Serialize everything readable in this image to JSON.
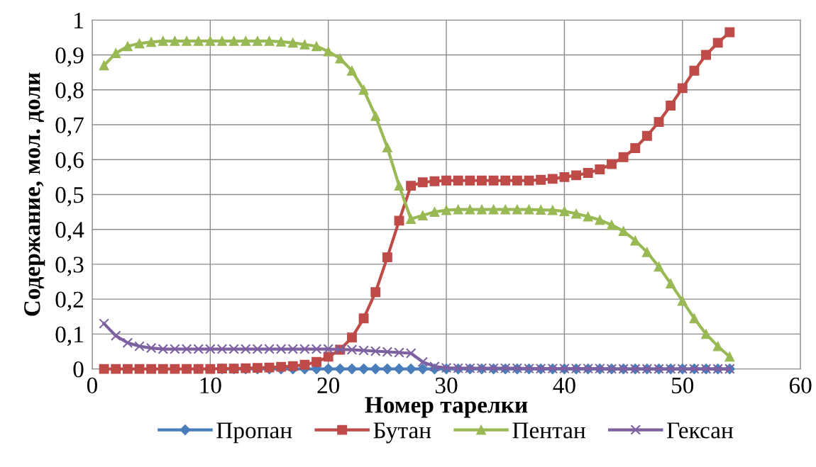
{
  "chart_data": {
    "type": "line",
    "xlabel": "Номер тарелки",
    "ylabel": "Содержание, мол. доли",
    "x": [
      1,
      2,
      3,
      4,
      5,
      6,
      7,
      8,
      9,
      10,
      11,
      12,
      13,
      14,
      15,
      16,
      17,
      18,
      19,
      20,
      21,
      22,
      23,
      24,
      25,
      26,
      27,
      28,
      29,
      30,
      31,
      32,
      33,
      34,
      35,
      36,
      37,
      38,
      39,
      40,
      41,
      42,
      43,
      44,
      45,
      46,
      47,
      48,
      49,
      50,
      51,
      52,
      53,
      54
    ],
    "series": [
      {
        "name": "Пропан",
        "color": "#4a7ebb",
        "marker": "diamond",
        "values": [
          null,
          null,
          null,
          null,
          null,
          null,
          null,
          null,
          null,
          null,
          0,
          0,
          0,
          0,
          0,
          0,
          0,
          0,
          0,
          0,
          0,
          0,
          0,
          0,
          0,
          0,
          0,
          0,
          0,
          0,
          0,
          0,
          0,
          0,
          0,
          0,
          0,
          0,
          0,
          0,
          0,
          0,
          0,
          0,
          0,
          0,
          0,
          0,
          0,
          0,
          0,
          0,
          0,
          0
        ]
      },
      {
        "name": "Бутан",
        "color": "#be4b48",
        "marker": "square",
        "values": [
          0,
          0,
          0,
          0,
          0,
          0,
          0,
          0,
          0,
          0,
          0.001,
          0.001,
          0.002,
          0.003,
          0.004,
          0.006,
          0.008,
          0.012,
          0.02,
          0.035,
          0.055,
          0.09,
          0.145,
          0.22,
          0.32,
          0.425,
          0.525,
          0.535,
          0.538,
          0.54,
          0.54,
          0.54,
          0.54,
          0.54,
          0.54,
          0.54,
          0.54,
          0.542,
          0.545,
          0.55,
          0.555,
          0.562,
          0.572,
          0.587,
          0.607,
          0.633,
          0.668,
          0.708,
          0.755,
          0.805,
          0.855,
          0.9,
          0.935,
          0.965
        ]
      },
      {
        "name": "Пентан",
        "color": "#98b954",
        "marker": "triangle",
        "values": [
          0.87,
          0.905,
          0.925,
          0.933,
          0.937,
          0.94,
          0.94,
          0.94,
          0.94,
          0.94,
          0.94,
          0.94,
          0.94,
          0.94,
          0.94,
          0.938,
          0.935,
          0.93,
          0.925,
          0.91,
          0.89,
          0.855,
          0.8,
          0.725,
          0.635,
          0.525,
          0.43,
          0.44,
          0.45,
          0.455,
          0.457,
          0.457,
          0.457,
          0.457,
          0.457,
          0.457,
          0.457,
          0.456,
          0.455,
          0.452,
          0.445,
          0.437,
          0.427,
          0.413,
          0.395,
          0.368,
          0.335,
          0.293,
          0.245,
          0.195,
          0.145,
          0.1,
          0.065,
          0.035
        ]
      },
      {
        "name": "Гексан",
        "color": "#7d60a0",
        "marker": "cross",
        "values": [
          0.13,
          0.095,
          0.075,
          0.065,
          0.06,
          0.057,
          0.057,
          0.057,
          0.057,
          0.057,
          0.057,
          0.057,
          0.057,
          0.057,
          0.057,
          0.057,
          0.057,
          0.057,
          0.057,
          0.057,
          0.056,
          0.055,
          0.053,
          0.051,
          0.049,
          0.047,
          0.045,
          0.02,
          0.007,
          0.003,
          0.002,
          0.002,
          0.002,
          0.002,
          0.002,
          0.002,
          0.001,
          0.001,
          0.001,
          0.001,
          0.001,
          0.001,
          0.001,
          0,
          0,
          0,
          0,
          0,
          0,
          0,
          0,
          0,
          0,
          0
        ]
      }
    ],
    "xlim": [
      0,
      60
    ],
    "xticks": [
      0,
      10,
      20,
      30,
      40,
      50,
      60
    ],
    "ylim": [
      0,
      1
    ],
    "yticks": [
      0,
      {
        "value": 0.1,
        "label": "0,1"
      },
      {
        "value": 0.2,
        "label": "0,2"
      },
      {
        "value": 0.3,
        "label": "0,3"
      },
      {
        "value": 0.4,
        "label": "0,4"
      },
      {
        "value": 0.5,
        "label": "0,5"
      },
      {
        "value": 0.6,
        "label": "0,6"
      },
      {
        "value": 0.7,
        "label": "0,7"
      },
      {
        "value": 0.8,
        "label": "0,8"
      },
      {
        "value": 0.9,
        "label": "0,9"
      },
      1
    ],
    "grid": true,
    "legend": "bottom",
    "line_style": "solid"
  }
}
